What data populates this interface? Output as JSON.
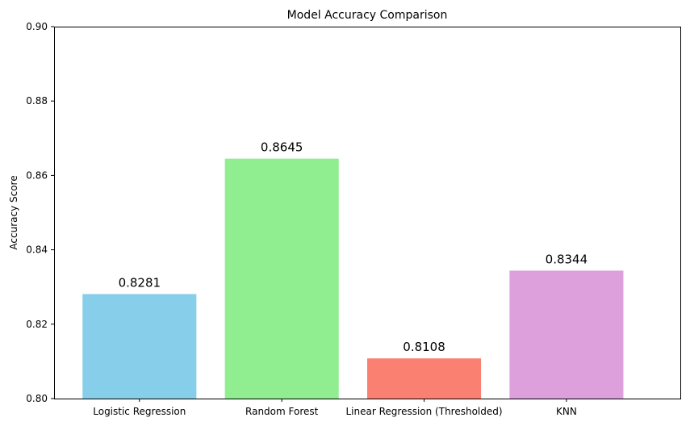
{
  "chart_data": {
    "type": "bar",
    "title": "Model Accuracy Comparison",
    "xlabel": "",
    "ylabel": "Accuracy Score",
    "categories": [
      "Logistic Regression",
      "Random Forest",
      "Linear Regression (Thresholded)",
      "KNN"
    ],
    "values": [
      0.8281,
      0.8645,
      0.8108,
      0.8344
    ],
    "value_labels": [
      "0.8281",
      "0.8645",
      "0.8108",
      "0.8344"
    ],
    "colors": [
      "#87ceeb",
      "#90ee90",
      "#fa8072",
      "#dda0dd"
    ],
    "ylim": [
      0.8,
      0.9
    ],
    "yticks": [
      0.8,
      0.82,
      0.84,
      0.86,
      0.88,
      0.9
    ],
    "ytick_labels": [
      "0.80",
      "0.82",
      "0.84",
      "0.86",
      "0.88",
      "0.90"
    ],
    "grid": false,
    "legend": "none"
  }
}
